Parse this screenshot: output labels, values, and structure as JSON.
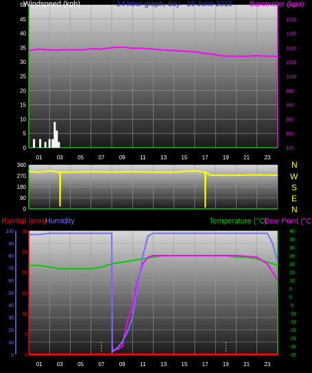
{
  "header": {
    "windspeed_label": "Windspeed (kph)",
    "barometer_label": "Barometer (kpa)",
    "date_label": "24 hour graph, day - 16 June 2018"
  },
  "rain_label": "Rainfall (mm)",
  "humidity_label": "Humidity",
  "temperature_label": "Temperature (°C)",
  "dewpoint_label": "Dew Point (°C)",
  "wind_dir_labels": [
    "N",
    "W",
    "S",
    "E",
    "N"
  ],
  "colors": {
    "background": "#000000",
    "windspeed": "#ffffff",
    "barometer": "#ff00ff",
    "direction": "#ffff00",
    "humidity": "#7070ff",
    "temperature": "#00cc00",
    "dewpoint": "#ff00ff",
    "rainfall": "#ff0000",
    "frame": "#00cc00"
  },
  "chart_data": [
    {
      "type": "bar",
      "name": "windspeed-barometer",
      "xlabels": [
        "01",
        "03",
        "05",
        "07",
        "09",
        "11",
        "13",
        "15",
        "17",
        "19",
        "21",
        "23"
      ],
      "ylim": [
        0,
        50
      ],
      "ylabels": [
        "0",
        "5",
        "10",
        "15",
        "20",
        "25",
        "30",
        "35",
        "40",
        "45",
        "50"
      ],
      "y2lim": [
        975,
        1025
      ],
      "y2labels": [
        "975",
        "980",
        "985",
        "990",
        "995",
        "1000",
        "1005",
        "1010",
        "1015",
        "1020",
        "1025"
      ],
      "wind_x": [
        0.5,
        1.1,
        1.6,
        2.0,
        2.3,
        2.5,
        2.7,
        2.9
      ],
      "wind_values": [
        3,
        3,
        2,
        3,
        3,
        9,
        6,
        2
      ],
      "pressure_x": [
        0,
        1,
        2,
        3,
        4,
        5,
        6,
        7,
        8,
        9,
        10,
        11,
        12,
        13,
        14,
        15,
        16,
        17,
        18,
        19,
        20,
        21,
        22,
        23,
        24
      ],
      "pressure_values": [
        1009,
        1009.5,
        1009.2,
        1009.2,
        1009.3,
        1009.2,
        1009.6,
        1009.5,
        1010,
        1010.2,
        1009.8,
        1009.8,
        1009.5,
        1009.2,
        1009,
        1008.8,
        1008.5,
        1008,
        1007.5,
        1007,
        1007,
        1007,
        1007.2,
        1007,
        1007
      ]
    },
    {
      "type": "line",
      "name": "wind-direction",
      "ylim": [
        0,
        360
      ],
      "ylabels": [
        "0",
        "90",
        "180",
        "270",
        "360"
      ],
      "x": [
        0,
        1,
        2,
        3,
        3.01,
        3.05,
        4,
        6,
        8,
        10,
        12,
        14,
        16,
        17,
        17.01,
        17.05,
        17.5,
        20,
        22,
        24
      ],
      "values": [
        305,
        300,
        310,
        300,
        20,
        300,
        300,
        305,
        300,
        305,
        300,
        300,
        310,
        300,
        10,
        300,
        275,
        275,
        278,
        275
      ]
    },
    {
      "type": "line",
      "name": "temperature-humidity",
      "xlabels": [
        "01",
        "03",
        "05",
        "07",
        "09",
        "11",
        "13",
        "15",
        "17",
        "19",
        "21",
        "23"
      ],
      "rain_lim": [
        0,
        30
      ],
      "rain_labels": [
        "0",
        "5",
        "10",
        "15",
        "20",
        "25",
        "30"
      ],
      "humidity_lim": [
        0,
        100
      ],
      "humidity_labels": [
        "0",
        "10",
        "20",
        "30",
        "40",
        "50",
        "60",
        "70",
        "80",
        "90",
        "100"
      ],
      "temp_lim": [
        -35,
        40
      ],
      "temp_labels": [
        "-35",
        "-30",
        "-25",
        "-20",
        "-15",
        "-10",
        "-5",
        "0",
        "5",
        "10",
        "15",
        "20",
        "25",
        "30",
        "35",
        "40"
      ],
      "series": [
        {
          "name": "Humidity",
          "x": [
            0,
            1,
            2,
            3,
            4,
            5,
            6,
            7,
            7.5,
            8,
            8.05,
            8.5,
            9,
            9.5,
            10,
            10.5,
            11,
            11.5,
            12,
            14,
            16,
            18,
            20,
            22,
            23,
            23.5,
            24
          ],
          "values": [
            97,
            97,
            98,
            98,
            98,
            98,
            98,
            98,
            98,
            98,
            2,
            5,
            10,
            18,
            30,
            55,
            80,
            96,
            98,
            98,
            98,
            98,
            98,
            98,
            98,
            90,
            75
          ]
        },
        {
          "name": "Temperature",
          "x": [
            0,
            1,
            2,
            3,
            4,
            5,
            6,
            7,
            8,
            9,
            10,
            11,
            12,
            13,
            14,
            15,
            16,
            17,
            18,
            19,
            20,
            21,
            22,
            23,
            24
          ],
          "values": [
            19,
            19,
            18,
            17,
            17,
            17,
            17,
            18,
            20,
            21,
            22,
            23,
            24,
            25,
            25,
            25,
            25,
            25,
            25,
            25,
            24,
            24,
            23,
            21,
            19
          ]
        },
        {
          "name": "Dew Point",
          "x": [
            8,
            8.05,
            8.5,
            9,
            9.5,
            10,
            10.5,
            11,
            11.5,
            12,
            14,
            16,
            18,
            20,
            22,
            23,
            23.5,
            24
          ],
          "values": [
            20,
            -32,
            -32,
            -30,
            -15,
            -5,
            10,
            20,
            24,
            25,
            25,
            25,
            25,
            25,
            24,
            20,
            15,
            10
          ]
        },
        {
          "name": "Rainfall",
          "x": [
            0,
            24
          ],
          "values": [
            0,
            0
          ]
        }
      ],
      "rain_ticks_x": [
        7,
        19
      ]
    }
  ]
}
